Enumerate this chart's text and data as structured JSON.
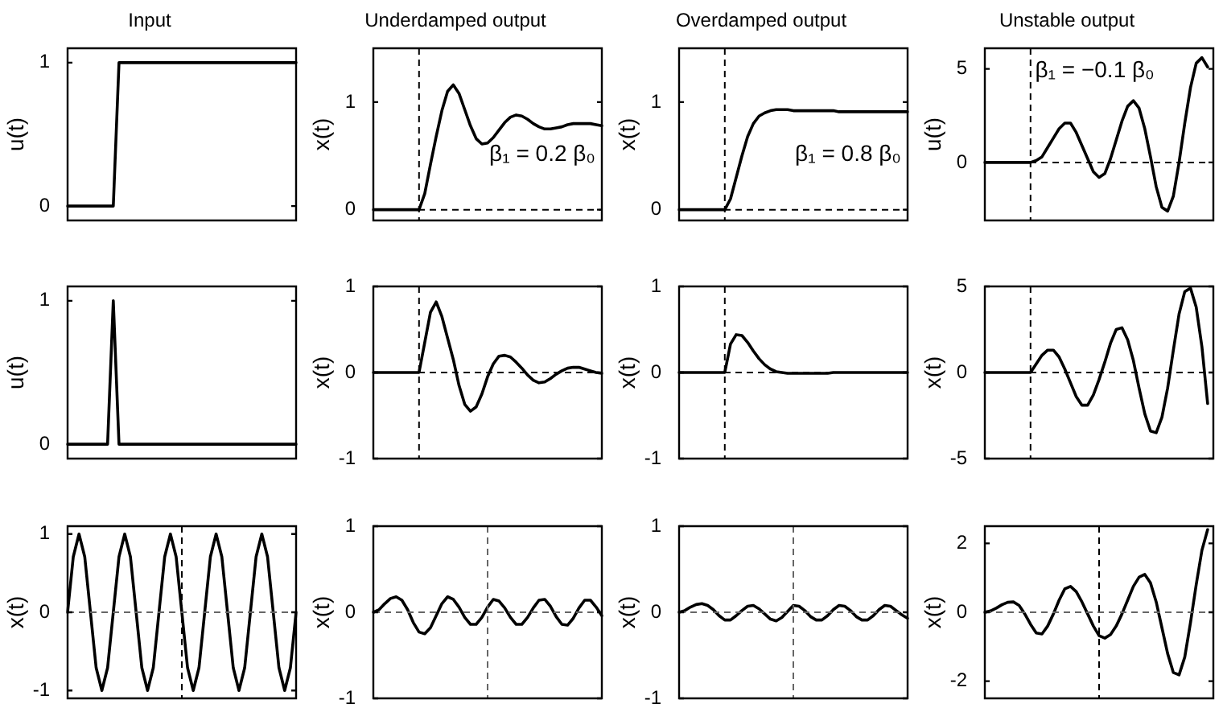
{
  "chart_data": [
    {
      "type": "line",
      "title": "Input",
      "ylabel": "u(t)",
      "marker": "none",
      "tick_labels": "y",
      "ylim": [
        -0.1,
        1.1
      ],
      "yticks": [
        0,
        1
      ],
      "color": "#000000",
      "categories": [
        null,
        null,
        null,
        null,
        null,
        null,
        null,
        null,
        null,
        null,
        null,
        null,
        null,
        null,
        null,
        null,
        null,
        null,
        null,
        null,
        null,
        null,
        null,
        null,
        null,
        null,
        null,
        null,
        null,
        null,
        null,
        null,
        null,
        null,
        null,
        null,
        null,
        null,
        null,
        null,
        null
      ],
      "values": [
        0,
        0,
        0,
        0,
        0,
        0,
        0,
        0,
        0,
        1,
        1,
        1,
        1,
        1,
        1,
        1,
        1,
        1,
        1,
        1,
        1,
        1,
        1,
        1,
        1,
        1,
        1,
        1,
        1,
        1,
        1,
        1,
        1,
        1,
        1,
        1,
        1,
        1,
        1,
        1,
        1
      ]
    },
    {
      "type": "line",
      "title": "Underdamped output",
      "ylabel": "x(t)",
      "marker": "none",
      "tick_labels": "y",
      "ylim": [
        -0.1,
        1.5
      ],
      "yticks": [
        0,
        1
      ],
      "color": "#000000",
      "categories": [
        null,
        null,
        null,
        null,
        null,
        null,
        null,
        null,
        null,
        null,
        null,
        null,
        null,
        null,
        null,
        null,
        null,
        null,
        null,
        null,
        null,
        null,
        null,
        null,
        null,
        null,
        null,
        null,
        null,
        null,
        null,
        null,
        null,
        null,
        null,
        null,
        null,
        null,
        null,
        null,
        null
      ],
      "values": [
        0,
        0,
        0,
        0,
        0,
        0,
        0,
        0,
        0,
        0.15,
        0.42,
        0.68,
        0.92,
        1.1,
        1.16,
        1.08,
        0.93,
        0.78,
        0.66,
        0.61,
        0.62,
        0.67,
        0.74,
        0.81,
        0.86,
        0.88,
        0.87,
        0.84,
        0.8,
        0.77,
        0.75,
        0.75,
        0.76,
        0.77,
        0.79,
        0.8,
        0.8,
        0.8,
        0.8,
        0.79,
        0.78
      ],
      "ref_lines": [
        {
          "axis": "y",
          "value": 0,
          "color": "#000000",
          "line_style": "dashed"
        }
      ],
      "annotations": [
        "β₁ = 0.2 β₀"
      ]
    },
    {
      "type": "line",
      "title": "Overdamped output",
      "ylabel": "x(t)",
      "marker": "none",
      "tick_labels": "y",
      "ylim": [
        -0.1,
        1.5
      ],
      "yticks": [
        0,
        1
      ],
      "color": "#000000",
      "categories": [
        null,
        null,
        null,
        null,
        null,
        null,
        null,
        null,
        null,
        null,
        null,
        null,
        null,
        null,
        null,
        null,
        null,
        null,
        null,
        null,
        null,
        null,
        null,
        null,
        null,
        null,
        null,
        null,
        null,
        null,
        null,
        null,
        null,
        null,
        null,
        null,
        null,
        null,
        null,
        null,
        null
      ],
      "values": [
        0,
        0,
        0,
        0,
        0,
        0,
        0,
        0,
        0,
        0.1,
        0.3,
        0.5,
        0.68,
        0.8,
        0.87,
        0.9,
        0.92,
        0.93,
        0.93,
        0.93,
        0.92,
        0.92,
        0.92,
        0.92,
        0.92,
        0.92,
        0.92,
        0.92,
        0.91,
        0.91,
        0.91,
        0.91,
        0.91,
        0.91,
        0.91,
        0.91,
        0.91,
        0.91,
        0.91,
        0.91,
        0.91
      ],
      "ref_lines": [
        {
          "axis": "y",
          "value": 0,
          "color": "#000000",
          "line_style": "dashed"
        }
      ],
      "annotations": [
        "β₁ = 0.8 β₀"
      ]
    },
    {
      "type": "line",
      "title": "Unstable output",
      "ylabel": "u(t)",
      "marker": "none",
      "tick_labels": "y",
      "ylim": [
        -3.1,
        6.1
      ],
      "yticks": [
        0,
        5
      ],
      "color": "#000000",
      "categories": [
        null,
        null,
        null,
        null,
        null,
        null,
        null,
        null,
        null,
        null,
        null,
        null,
        null,
        null,
        null,
        null,
        null,
        null,
        null,
        null,
        null,
        null,
        null,
        null,
        null,
        null,
        null,
        null,
        null,
        null,
        null,
        null,
        null,
        null,
        null,
        null,
        null,
        null,
        null,
        null,
        null
      ],
      "values": [
        0,
        0,
        0,
        0,
        0,
        0,
        0,
        0,
        0,
        0.1,
        0.3,
        0.8,
        1.3,
        1.8,
        2.1,
        2.1,
        1.6,
        0.9,
        0.2,
        -0.5,
        -0.8,
        -0.6,
        0.2,
        1.2,
        2.2,
        3.0,
        3.3,
        2.9,
        1.8,
        0.3,
        -1.3,
        -2.4,
        -2.6,
        -1.8,
        0,
        2.1,
        4.0,
        5.3,
        5.6,
        5.1,
        null
      ],
      "ref_lines": [
        {
          "axis": "y",
          "value": 0,
          "color": "#000000",
          "line_style": "dashed"
        }
      ],
      "annotations": [
        "β₁ = −0.1 β₀"
      ]
    },
    {
      "type": "line",
      "ylabel": "u(t)",
      "marker": "none",
      "tick_labels": "y",
      "ylim": [
        -0.1,
        1.1
      ],
      "yticks": [
        0,
        1
      ],
      "color": "#000000",
      "categories": [
        null,
        null,
        null,
        null,
        null,
        null,
        null,
        null,
        null,
        null,
        null,
        null,
        null,
        null,
        null,
        null,
        null,
        null,
        null,
        null,
        null,
        null,
        null,
        null,
        null,
        null,
        null,
        null,
        null,
        null,
        null,
        null,
        null,
        null,
        null,
        null,
        null,
        null,
        null,
        null,
        null
      ],
      "values": [
        0,
        0,
        0,
        0,
        0,
        0,
        0,
        0,
        1,
        0,
        0,
        0,
        0,
        0,
        0,
        0,
        0,
        0,
        0,
        0,
        0,
        0,
        0,
        0,
        0,
        0,
        0,
        0,
        0,
        0,
        0,
        0,
        0,
        0,
        0,
        0,
        0,
        0,
        0,
        0,
        0
      ]
    },
    {
      "type": "line",
      "ylabel": "x(t)",
      "marker": "none",
      "tick_labels": "y",
      "ylim": [
        -1,
        1
      ],
      "yticks": [
        -1,
        0,
        1
      ],
      "color": "#000000",
      "categories": [
        null,
        null,
        null,
        null,
        null,
        null,
        null,
        null,
        null,
        null,
        null,
        null,
        null,
        null,
        null,
        null,
        null,
        null,
        null,
        null,
        null,
        null,
        null,
        null,
        null,
        null,
        null,
        null,
        null,
        null,
        null,
        null,
        null,
        null,
        null,
        null,
        null,
        null,
        null,
        null,
        null
      ],
      "values": [
        0,
        0,
        0,
        0,
        0,
        0,
        0,
        0,
        0,
        0.35,
        0.7,
        0.82,
        0.65,
        0.4,
        0.15,
        -0.15,
        -0.37,
        -0.45,
        -0.4,
        -0.25,
        -0.05,
        0.1,
        0.19,
        0.2,
        0.18,
        0.12,
        0.05,
        -0.03,
        -0.09,
        -0.12,
        -0.11,
        -0.07,
        -0.02,
        0.02,
        0.05,
        0.06,
        0.06,
        0.04,
        0.02,
        0,
        -0.01
      ],
      "ref_lines": [
        {
          "axis": "y",
          "value": 0,
          "color": "#000000",
          "line_style": "dashed"
        }
      ]
    },
    {
      "type": "line",
      "ylabel": "x(t)",
      "marker": "none",
      "tick_labels": "y",
      "ylim": [
        -1,
        1
      ],
      "yticks": [
        -1,
        0,
        1
      ],
      "color": "#000000",
      "categories": [
        null,
        null,
        null,
        null,
        null,
        null,
        null,
        null,
        null,
        null,
        null,
        null,
        null,
        null,
        null,
        null,
        null,
        null,
        null,
        null,
        null,
        null,
        null,
        null,
        null,
        null,
        null,
        null,
        null,
        null,
        null,
        null,
        null,
        null,
        null,
        null,
        null,
        null,
        null,
        null,
        null
      ],
      "values": [
        0,
        0,
        0,
        0,
        0,
        0,
        0,
        0,
        0,
        0.33,
        0.44,
        0.43,
        0.35,
        0.25,
        0.16,
        0.09,
        0.04,
        0.01,
        0,
        -0.01,
        -0.01,
        -0.01,
        -0.01,
        -0.01,
        -0.01,
        -0.01,
        -0.01,
        0,
        0,
        0,
        0,
        0,
        0,
        0,
        0,
        0,
        0,
        0,
        0,
        0,
        0
      ],
      "ref_lines": [
        {
          "axis": "y",
          "value": 0,
          "color": "#000000",
          "line_style": "dashed"
        }
      ]
    },
    {
      "type": "line",
      "ylabel": "x(t)",
      "marker": "none",
      "tick_labels": "y",
      "ylim": [
        -5,
        5
      ],
      "yticks": [
        -5,
        0,
        5
      ],
      "color": "#000000",
      "categories": [
        null,
        null,
        null,
        null,
        null,
        null,
        null,
        null,
        null,
        null,
        null,
        null,
        null,
        null,
        null,
        null,
        null,
        null,
        null,
        null,
        null,
        null,
        null,
        null,
        null,
        null,
        null,
        null,
        null,
        null,
        null,
        null,
        null,
        null,
        null,
        null,
        null,
        null,
        null,
        null,
        null
      ],
      "values": [
        0,
        0,
        0,
        0,
        0,
        0,
        0,
        0,
        0,
        0.5,
        1,
        1.3,
        1.3,
        0.9,
        0.2,
        -0.6,
        -1.4,
        -1.9,
        -1.9,
        -1.3,
        -0.4,
        0.6,
        1.7,
        2.5,
        2.6,
        1.9,
        0.7,
        -0.9,
        -2.4,
        -3.4,
        -3.5,
        -2.6,
        -0.9,
        1.3,
        3.4,
        4.7,
        4.9,
        3.8,
        1.5,
        -1.8,
        null
      ],
      "ref_lines": [
        {
          "axis": "y",
          "value": 0,
          "color": "#000000",
          "line_style": "dashed"
        }
      ]
    },
    {
      "type": "line",
      "ylabel": "x(t)",
      "marker": "none",
      "tick_labels": "y",
      "ylim": [
        -1.1,
        1.1
      ],
      "yticks": [
        -1,
        0,
        1
      ],
      "color": "#000000",
      "categories": [
        null,
        null,
        null,
        null,
        null,
        null,
        null,
        null,
        null,
        null,
        null,
        null,
        null,
        null,
        null,
        null,
        null,
        null,
        null,
        null,
        null,
        null,
        null,
        null,
        null,
        null,
        null,
        null,
        null,
        null,
        null,
        null,
        null,
        null,
        null,
        null,
        null,
        null,
        null,
        null,
        null
      ],
      "values": [
        0,
        0.71,
        1,
        0.71,
        0,
        -0.71,
        -1,
        -0.71,
        0,
        0.71,
        1,
        0.71,
        0,
        -0.71,
        -1,
        -0.71,
        0,
        0.71,
        1,
        0.71,
        0,
        -0.71,
        -1,
        -0.71,
        0,
        0.71,
        1,
        0.71,
        0,
        -0.71,
        -1,
        -0.71,
        0,
        0.71,
        1,
        0.71,
        0,
        -0.71,
        -1,
        -0.71,
        0
      ],
      "ref_lines": [
        {
          "axis": "y",
          "value": 0,
          "color": "#666666",
          "line_style": "dashed"
        }
      ]
    },
    {
      "type": "line",
      "ylabel": "x(t)",
      "marker": "none",
      "tick_labels": "y",
      "ylim": [
        -1,
        1
      ],
      "yticks": [
        -1,
        0,
        1
      ],
      "color": "#000000",
      "categories": [
        null,
        null,
        null,
        null,
        null,
        null,
        null,
        null,
        null,
        null,
        null,
        null,
        null,
        null,
        null,
        null,
        null,
        null,
        null,
        null,
        null,
        null,
        null,
        null,
        null,
        null,
        null,
        null,
        null,
        null,
        null,
        null,
        null,
        null,
        null,
        null,
        null,
        null,
        null,
        null,
        null
      ],
      "values": [
        0,
        0.03,
        0.1,
        0.16,
        0.18,
        0.14,
        0.03,
        -0.12,
        -0.23,
        -0.25,
        -0.18,
        -0.04,
        0.1,
        0.18,
        0.15,
        0.06,
        -0.06,
        -0.14,
        -0.14,
        -0.06,
        0.06,
        0.15,
        0.13,
        0.05,
        -0.06,
        -0.14,
        -0.14,
        -0.06,
        0.05,
        0.14,
        0.15,
        0.07,
        -0.05,
        -0.14,
        -0.15,
        -0.07,
        0.05,
        0.14,
        0.14,
        0.06,
        -0.04
      ],
      "ref_lines": [
        {
          "axis": "y",
          "value": 0,
          "color": "#666666",
          "line_style": "dashed"
        }
      ]
    },
    {
      "type": "line",
      "ylabel": "x(t)",
      "marker": "none",
      "tick_labels": "y",
      "ylim": [
        -1,
        1
      ],
      "yticks": [
        -1,
        0,
        1
      ],
      "color": "#000000",
      "categories": [
        null,
        null,
        null,
        null,
        null,
        null,
        null,
        null,
        null,
        null,
        null,
        null,
        null,
        null,
        null,
        null,
        null,
        null,
        null,
        null,
        null,
        null,
        null,
        null,
        null,
        null,
        null,
        null,
        null,
        null,
        null,
        null,
        null,
        null,
        null,
        null,
        null,
        null,
        null,
        null,
        null
      ],
      "values": [
        0,
        0.02,
        0.06,
        0.09,
        0.1,
        0.08,
        0.03,
        -0.04,
        -0.09,
        -0.09,
        -0.04,
        0.02,
        0.07,
        0.08,
        0.04,
        -0.02,
        -0.08,
        -0.1,
        -0.06,
        0.01,
        0.08,
        0.07,
        0.02,
        -0.05,
        -0.09,
        -0.09,
        -0.04,
        0.03,
        0.08,
        0.07,
        0.02,
        -0.05,
        -0.09,
        -0.09,
        -0.04,
        0.03,
        0.08,
        0.07,
        0.02,
        -0.03,
        -0.07
      ],
      "ref_lines": [
        {
          "axis": "y",
          "value": 0,
          "color": "#666666",
          "line_style": "dashed"
        }
      ]
    },
    {
      "type": "line",
      "ylabel": "x(t)",
      "marker": "none",
      "tick_labels": "y",
      "ylim": [
        -2.5,
        2.5
      ],
      "yticks": [
        -2,
        0,
        2
      ],
      "color": "#000000",
      "categories": [
        null,
        null,
        null,
        null,
        null,
        null,
        null,
        null,
        null,
        null,
        null,
        null,
        null,
        null,
        null,
        null,
        null,
        null,
        null,
        null,
        null,
        null,
        null,
        null,
        null,
        null,
        null,
        null,
        null,
        null,
        null,
        null,
        null,
        null,
        null,
        null,
        null,
        null,
        null,
        null,
        null
      ],
      "values": [
        0,
        0.04,
        0.12,
        0.22,
        0.29,
        0.3,
        0.2,
        -0.05,
        -0.35,
        -0.6,
        -0.63,
        -0.4,
        -0.05,
        0.35,
        0.68,
        0.75,
        0.6,
        0.3,
        -0.05,
        -0.4,
        -0.68,
        -0.75,
        -0.65,
        -0.4,
        -0.05,
        0.35,
        0.75,
        1.02,
        1.1,
        0.85,
        0.3,
        -0.45,
        -1.2,
        -1.75,
        -1.82,
        -1.3,
        -0.3,
        0.8,
        1.8,
        2.4,
        null
      ],
      "ref_lines": [
        {
          "axis": "y",
          "value": 0,
          "color": "#666666",
          "line_style": "dashed"
        }
      ]
    }
  ]
}
